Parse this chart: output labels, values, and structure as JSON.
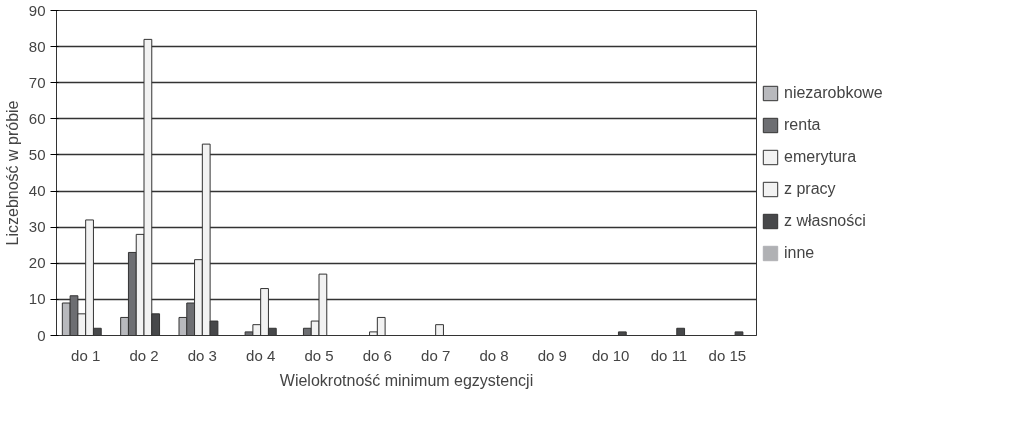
{
  "chart_data": {
    "type": "bar",
    "xlabel": "Wielokrotność minimum egzystencji",
    "ylabel": "Liczebność w próbie",
    "categories": [
      "do 1",
      "do 2",
      "do 3",
      "do 4",
      "do 5",
      "do 6",
      "do 7",
      "do 8",
      "do 9",
      "do 10",
      "do 11",
      "do 15"
    ],
    "series": [
      {
        "name": "niezarobkowe",
        "color": "#b8b9bd",
        "values": [
          9,
          5,
          5,
          0,
          0,
          0,
          0,
          0,
          0,
          0,
          0,
          0
        ]
      },
      {
        "name": "renta",
        "color": "#6d6e72",
        "values": [
          11,
          23,
          9,
          1,
          2,
          0,
          0,
          0,
          0,
          0,
          0,
          0
        ]
      },
      {
        "name": "emerytura",
        "color": "#f2f2f2",
        "values": [
          6,
          28,
          21,
          3,
          4,
          1,
          0,
          0,
          0,
          0,
          0,
          0
        ]
      },
      {
        "name": "z pracy",
        "color": "#f2f2f2",
        "values": [
          32,
          82,
          53,
          13,
          17,
          5,
          3,
          0,
          0,
          0,
          0,
          0
        ]
      },
      {
        "name": "z własności",
        "color": "#47484a",
        "values": [
          2,
          6,
          4,
          2,
          0,
          0,
          0,
          0,
          0,
          1,
          2,
          1
        ]
      },
      {
        "name": "inne",
        "color": "#b0b1b4",
        "values": [
          0,
          0,
          0,
          0,
          0,
          0,
          0,
          0,
          0,
          0,
          0,
          0
        ]
      }
    ],
    "ylim": [
      0,
      90
    ],
    "yticks": [
      0,
      10,
      20,
      30,
      40,
      50,
      60,
      70,
      80,
      90
    ],
    "grid": "y",
    "legend": "right"
  }
}
